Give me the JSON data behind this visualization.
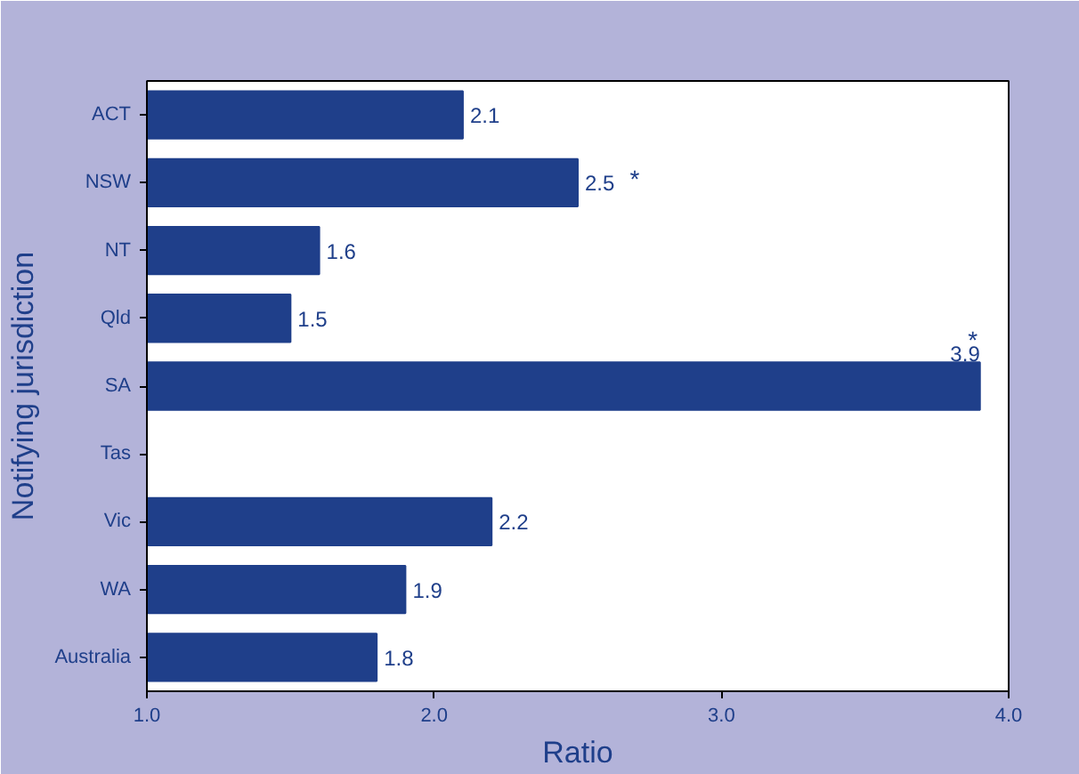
{
  "chart_data": {
    "type": "bar",
    "orientation": "horizontal",
    "categories": [
      "ACT",
      "NSW",
      "NT",
      "Qld",
      "SA",
      "Tas",
      "Vic",
      "WA",
      "Australia"
    ],
    "values": [
      2.1,
      2.5,
      1.6,
      1.5,
      3.9,
      null,
      2.2,
      1.9,
      1.8
    ],
    "color": "#1f3f8a",
    "data_labels": true,
    "xlim": [
      1.0,
      4.0
    ],
    "xticks": [
      {
        "value": 1,
        "label": "1.0"
      },
      {
        "value": 2,
        "label": "2.0"
      },
      {
        "value": 3,
        "label": "3.0"
      },
      {
        "value": 4,
        "label": "4.0"
      }
    ],
    "xlabel": "Ratio",
    "ylabel": "Notifying jurisdiction",
    "grid": false,
    "annotations": [
      {
        "text": "*",
        "x": 2.5,
        "y": "NSW"
      },
      {
        "text": "*",
        "x": 3.9,
        "y": "SA"
      }
    ]
  }
}
